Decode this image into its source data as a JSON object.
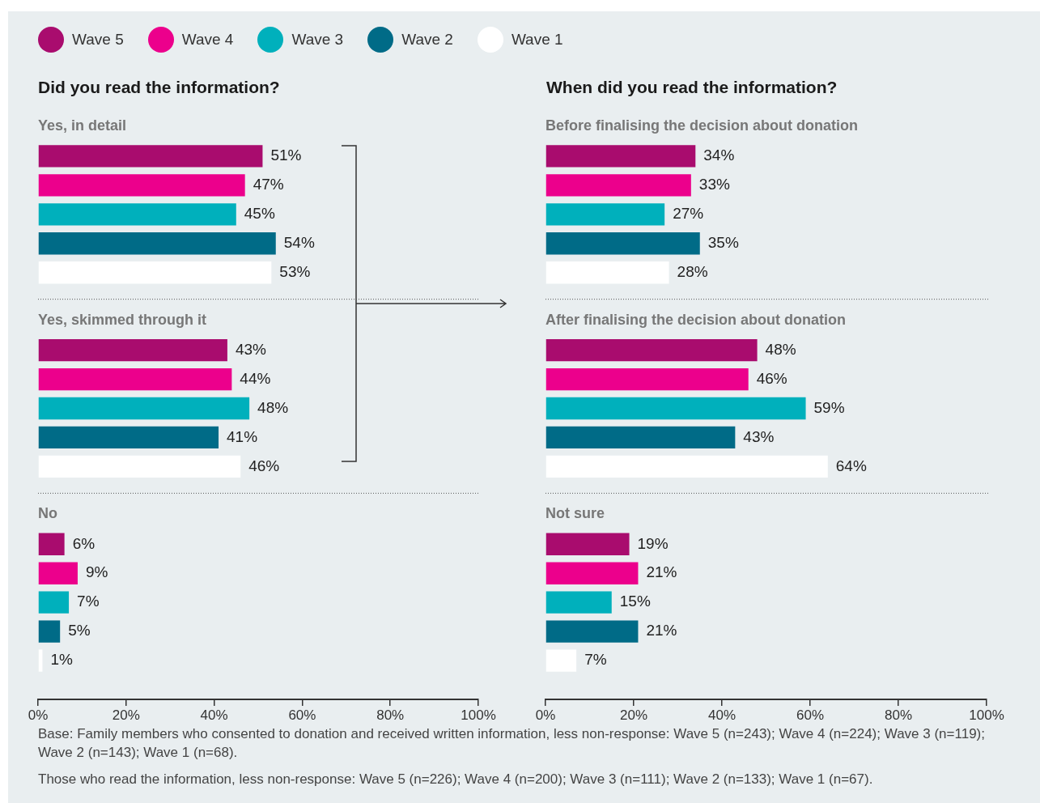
{
  "chart_data": [
    {
      "type": "bar",
      "orientation": "horizontal",
      "title": "Did you read the information?",
      "categories": [
        "Yes, in detail",
        "Yes, skimmed through it",
        "No"
      ],
      "series": [
        {
          "name": "Wave 5",
          "color": "#a90c6e",
          "values": [
            51,
            43,
            6
          ],
          "value_labels": [
            "51%",
            "43%",
            "6%"
          ]
        },
        {
          "name": "Wave 4",
          "color": "#ec008c",
          "values": [
            47,
            44,
            9
          ],
          "value_labels": [
            "47%",
            "44%",
            "9%"
          ]
        },
        {
          "name": "Wave 3",
          "color": "#00b0bc",
          "values": [
            45,
            48,
            7
          ],
          "value_labels": [
            "45%",
            "48%",
            "7%"
          ]
        },
        {
          "name": "Wave 2",
          "color": "#006b87",
          "values": [
            54,
            41,
            5
          ],
          "value_labels": [
            "54%",
            "41%",
            "5%"
          ]
        },
        {
          "name": "Wave 1",
          "color": "#ffffff",
          "values": [
            53,
            46,
            1
          ],
          "value_labels": [
            "53%",
            "46%",
            "1%"
          ]
        }
      ],
      "xlim": [
        0,
        100
      ],
      "xticks": [
        {
          "value": 0,
          "label": "0%"
        },
        {
          "value": 20,
          "label": "20%"
        },
        {
          "value": 40,
          "label": "40%"
        },
        {
          "value": 60,
          "label": "60%"
        },
        {
          "value": 80,
          "label": "80%"
        },
        {
          "value": 100,
          "label": "100%"
        }
      ],
      "legend": "top",
      "annotations": [
        "Base: Family members who consented to donation and received written information, less non-response: Wave 5 (n=243); Wave 4 (n=224); Wave 3 (n=119); Wave 2 (n=143); Wave 1 (n=68).",
        "Those who read the information, less non-response: Wave 5 (n=226); Wave 4 (n=200); Wave 3 (n=111); Wave 2 (n=133); Wave 1 (n=67)."
      ]
    },
    {
      "type": "bar",
      "orientation": "horizontal",
      "title": "When did you read the information?",
      "categories": [
        "Before finalising the decision about donation",
        "After finalising the decision about donation",
        "Not sure"
      ],
      "series": [
        {
          "color": "#a90c6e",
          "values": [
            34,
            48,
            19
          ],
          "value_labels": [
            "34%",
            "48%",
            "19%"
          ]
        },
        {
          "color": "#ec008c",
          "values": [
            33,
            46,
            21
          ],
          "value_labels": [
            "33%",
            "46%",
            "21%"
          ]
        },
        {
          "color": "#00b0bc",
          "values": [
            27,
            59,
            15
          ],
          "value_labels": [
            "27%",
            "59%",
            "15%"
          ]
        },
        {
          "color": "#006b87",
          "values": [
            35,
            43,
            21
          ],
          "value_labels": [
            "35%",
            "43%",
            "21%"
          ]
        },
        {
          "color": "#ffffff",
          "values": [
            28,
            64,
            7
          ],
          "value_labels": [
            "28%",
            "64%",
            "7%"
          ]
        }
      ],
      "xlim": [
        0,
        100
      ],
      "xticks": [
        {
          "value": 0,
          "label": "0%"
        },
        {
          "value": 20,
          "label": "20%"
        },
        {
          "value": 40,
          "label": "40%"
        },
        {
          "value": 60,
          "label": "60%"
        },
        {
          "value": 80,
          "label": "80%"
        },
        {
          "value": 100,
          "label": "100%"
        }
      ],
      "legend": false
    }
  ]
}
